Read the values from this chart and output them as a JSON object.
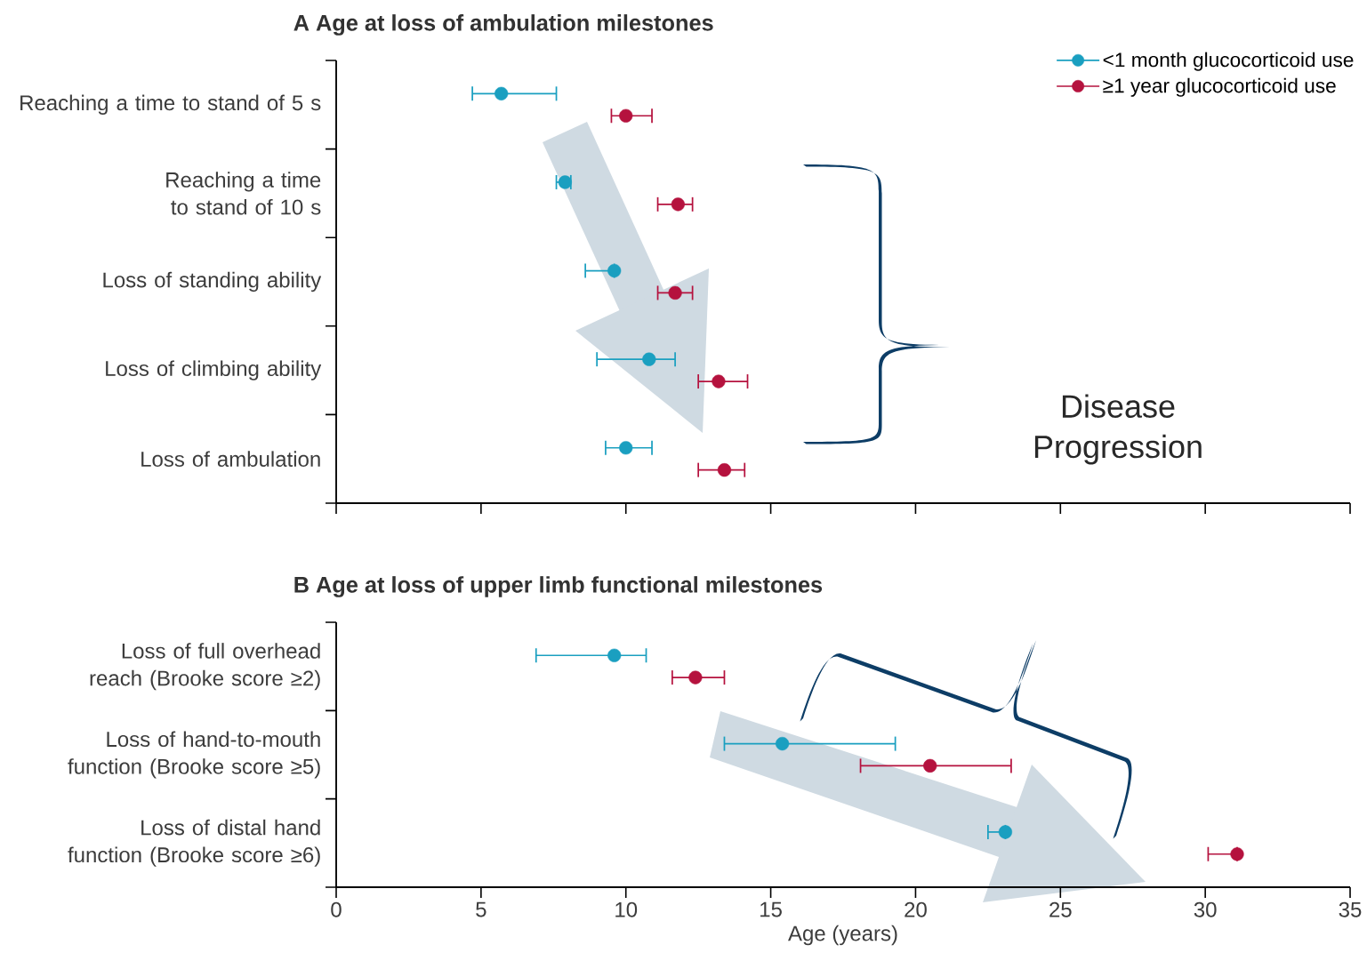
{
  "chart_data": [
    {
      "type": "scatter",
      "orientation": "horizontal",
      "title": "A  Age at loss of ambulation milestones",
      "categories": [
        "Reaching a time to stand of 5 s",
        "Reaching a time to stand of 10 s",
        "Loss of standing ability",
        "Loss of climbing ability",
        "Loss of ambulation"
      ],
      "series": [
        {
          "name": "<1 month glucocorticoid use",
          "color": "#1a9fc0",
          "values": [
            5.7,
            7.9,
            9.6,
            10.8,
            10.0
          ],
          "errors": [
            [
              4.7,
              7.6
            ],
            [
              7.6,
              8.1
            ],
            [
              8.6,
              9.6
            ],
            [
              9.0,
              11.7
            ],
            [
              9.3,
              10.9
            ]
          ]
        },
        {
          "name": "≥1 year glucocorticoid use",
          "color": "#b5123e",
          "values": [
            10.0,
            11.8,
            11.7,
            13.2,
            13.4
          ],
          "errors": [
            [
              9.5,
              10.9
            ],
            [
              11.1,
              12.3
            ],
            [
              11.1,
              12.3
            ],
            [
              12.5,
              14.2
            ],
            [
              12.5,
              14.1
            ]
          ]
        }
      ],
      "xlim": [
        0,
        35
      ],
      "xticks": [
        0,
        5,
        10,
        15,
        20,
        25,
        30,
        35
      ],
      "tick_labels": "y",
      "legend": "top right",
      "annotations": [
        "Disease Progression"
      ]
    },
    {
      "type": "scatter",
      "orientation": "horizontal",
      "title": "B  Age at loss of upper limb functional milestones",
      "xlabel": "Age (years)",
      "categories": [
        "Loss of full overhead reach (Brooke score ≥2)",
        "Loss of hand-to-mouth function (Brooke score ≥5)",
        "Loss of distal hand function (Brooke score ≥6)"
      ],
      "series": [
        {
          "color": "#1a9fc0",
          "values": [
            9.6,
            15.4,
            23.1
          ],
          "errors": [
            [
              6.9,
              10.7
            ],
            [
              13.4,
              19.3
            ],
            [
              22.5,
              23.1
            ]
          ]
        },
        {
          "color": "#b5123e",
          "values": [
            12.4,
            20.5,
            31.1
          ],
          "errors": [
            [
              11.6,
              13.4
            ],
            [
              18.1,
              23.3
            ],
            [
              30.1,
              31.1
            ]
          ]
        }
      ],
      "xlim": [
        0,
        35
      ],
      "xticks": [
        0,
        5,
        10,
        15,
        20,
        25,
        30,
        35
      ]
    }
  ]
}
